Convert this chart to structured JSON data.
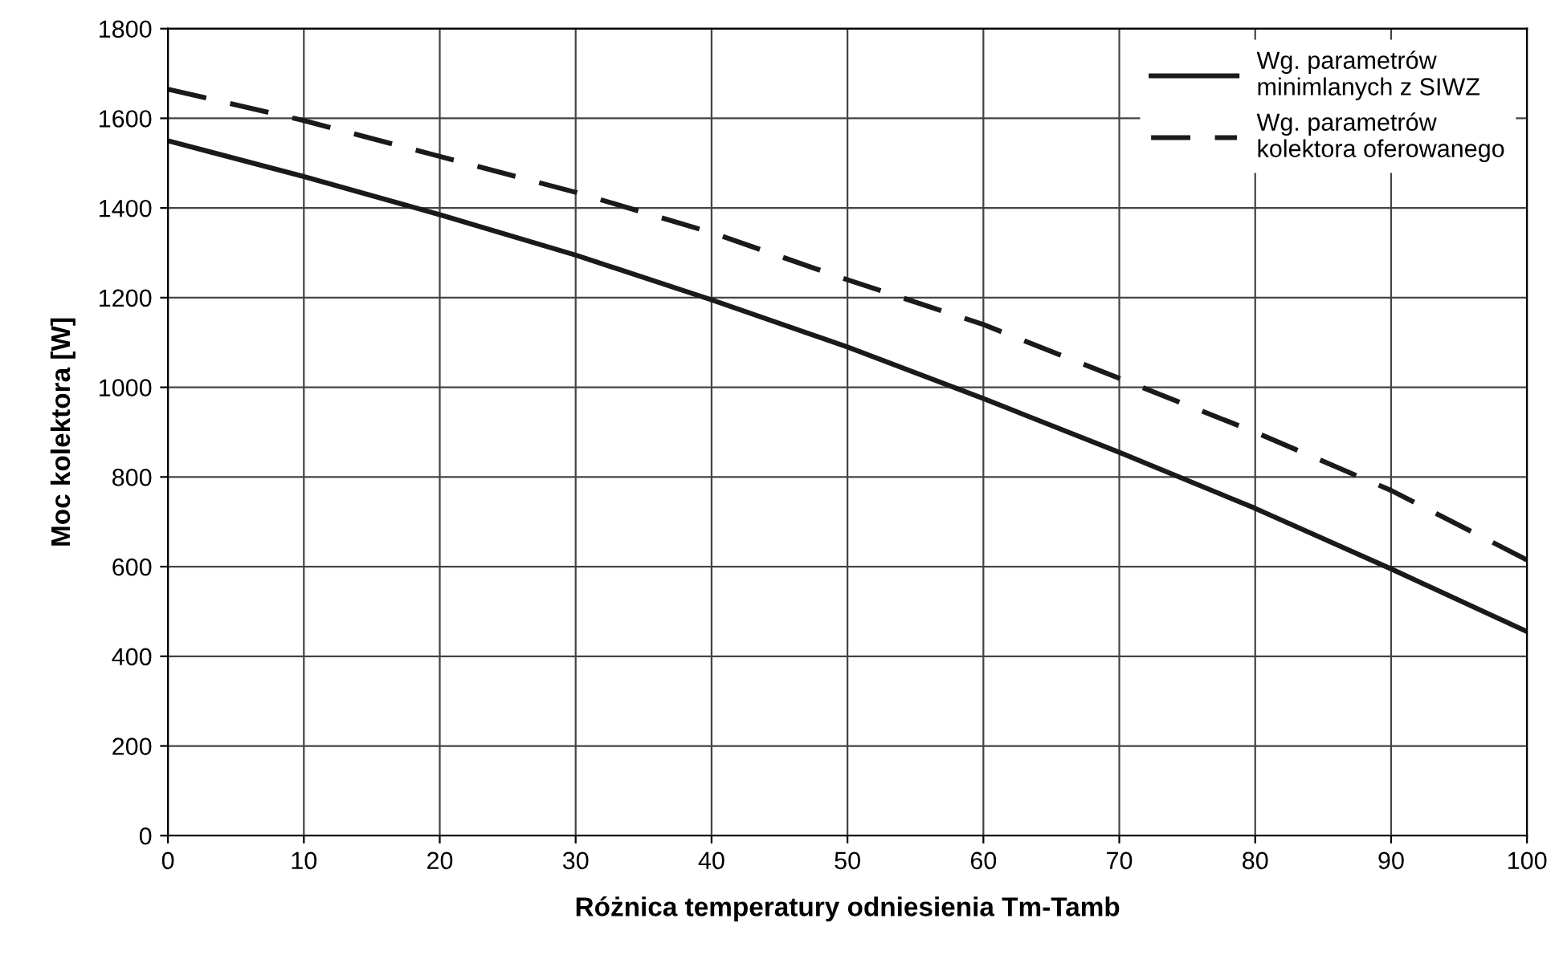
{
  "chart_data": {
    "type": "line",
    "xlabel": "Różnica temperatury odniesienia Tm-Tamb",
    "ylabel": "Moc kolektora [W]",
    "x": [
      0,
      10,
      20,
      30,
      40,
      50,
      60,
      70,
      80,
      90,
      100
    ],
    "series": [
      {
        "name": "Wg. parametrów\nminimlanych z SIWZ",
        "color": "#1a1a1a",
        "line_style": "solid",
        "values": [
          1550,
          1470,
          1385,
          1295,
          1195,
          1090,
          975,
          855,
          730,
          595,
          455
        ]
      },
      {
        "name": "Wg. parametrów\nkolektora oferowanego",
        "color": "#1a1a1a",
        "line_style": "dashed",
        "values": [
          1665,
          1595,
          1515,
          1435,
          1345,
          1240,
          1140,
          1020,
          900,
          770,
          615
        ]
      }
    ],
    "xlim": [
      0,
      100
    ],
    "ylim": [
      0,
      1800
    ],
    "xticks": [
      0,
      10,
      20,
      30,
      40,
      50,
      60,
      70,
      80,
      90,
      100
    ],
    "yticks": [
      0,
      200,
      400,
      600,
      800,
      1000,
      1200,
      1400,
      1600,
      1800
    ],
    "grid": true,
    "legend": "top right",
    "marker": "none"
  }
}
